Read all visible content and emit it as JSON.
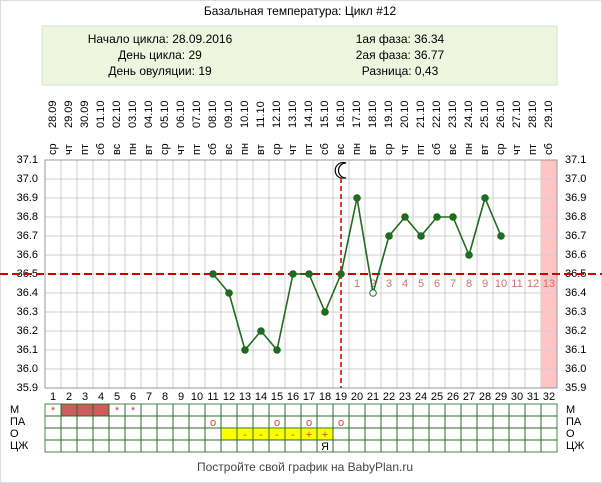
{
  "chart_data": {
    "type": "line",
    "title": "Базальная температура: Цикл #12",
    "info": [
      {
        "label": "Начало цикла:",
        "value": "28.09.2016"
      },
      {
        "label": "День цикла:",
        "value": 29
      },
      {
        "label": "День овуляции:",
        "value": 19
      },
      {
        "label": "1ая фаза:",
        "value": 36.34
      },
      {
        "label": "2ая фаза:",
        "value": 36.77
      },
      {
        "label": "Разница:",
        "value": "0,43"
      }
    ],
    "categories": [
      1,
      2,
      3,
      4,
      5,
      6,
      7,
      8,
      9,
      10,
      11,
      12,
      13,
      14,
      15,
      16,
      17,
      18,
      19,
      20,
      21,
      22,
      23,
      24,
      25,
      26,
      27,
      28,
      29,
      30,
      31,
      32
    ],
    "dates": [
      "28.09",
      "29.09",
      "30.09",
      "01.10",
      "02.10",
      "03.10",
      "04.10",
      "05.10",
      "06.10",
      "07.10",
      "08.10",
      "09.10",
      "10.10",
      "11.10",
      "12.10",
      "13.10",
      "14.10",
      "15.10",
      "16.10",
      "17.10",
      "18.10",
      "19.10",
      "20.10",
      "21.10",
      "22.10",
      "23.10",
      "24.10",
      "25.10",
      "26.10",
      "27.10",
      "28.10",
      "29.10"
    ],
    "weekdays": [
      "ср",
      "чт",
      "пт",
      "сб",
      "вс",
      "пн",
      "вт",
      "ср",
      "чт",
      "пт",
      "сб",
      "вс",
      "пн",
      "вт",
      "ср",
      "чт",
      "пт",
      "сб",
      "вс",
      "пн",
      "вт",
      "ср",
      "чт",
      "пт",
      "сб",
      "вс",
      "пн",
      "вт",
      "ср",
      "чт",
      "пт",
      "сб"
    ],
    "values": [
      null,
      null,
      null,
      null,
      null,
      null,
      null,
      null,
      null,
      null,
      36.5,
      36.4,
      36.1,
      36.2,
      36.1,
      36.5,
      36.5,
      36.3,
      36.5,
      36.9,
      36.4,
      36.7,
      36.8,
      36.7,
      36.8,
      36.8,
      36.6,
      36.9,
      36.7,
      null,
      null,
      null
    ],
    "hollow_points": [
      20
    ],
    "color": "#1f6b1f",
    "ylim": [
      35.9,
      37.1
    ],
    "yticks": [
      35.9,
      {
        "value": 36,
        "label": "36.0"
      },
      36.1,
      36.2,
      36.3,
      36.4,
      36.5,
      36.6,
      36.7,
      36.8,
      36.9,
      {
        "value": 37,
        "label": "37.0"
      },
      37.1
    ],
    "grid": true,
    "coverline": 36.5,
    "ovulation_day": 19,
    "luteal_days": [
      1,
      2,
      3,
      4,
      5,
      6,
      7,
      8,
      9,
      10,
      11,
      12,
      13
    ],
    "highlight_day": 32,
    "rows": [
      {
        "label": "М",
        "cells": [
          "*",
          null,
          null,
          null,
          "*",
          "*",
          null,
          null,
          null,
          null,
          null,
          null,
          null,
          null,
          null,
          null,
          null,
          null,
          null,
          null,
          null,
          null,
          null,
          null,
          null,
          null,
          null,
          null,
          null,
          null,
          null,
          null
        ],
        "filled": [
          1,
          2,
          3
        ],
        "fill_color": "#cd5c5c"
      },
      {
        "label": "ПА",
        "cells": [
          null,
          null,
          null,
          null,
          null,
          null,
          null,
          null,
          null,
          null,
          "o",
          null,
          null,
          null,
          "o",
          null,
          "o",
          null,
          "o",
          null,
          null,
          null,
          null,
          null,
          null,
          null,
          null,
          null,
          null,
          null,
          null,
          null
        ]
      },
      {
        "label": "О",
        "cells": [
          null,
          null,
          null,
          null,
          null,
          null,
          null,
          null,
          null,
          null,
          null,
          null,
          "-",
          "-",
          "-",
          "-",
          "+",
          "+",
          null,
          null,
          null,
          null,
          null,
          null,
          null,
          null,
          null,
          null,
          null,
          null,
          null,
          null
        ],
        "filled": [
          11,
          12,
          13,
          14,
          15,
          16,
          17
        ],
        "fill_color": "#ffff00"
      },
      {
        "label": "ЦЖ",
        "cells": [
          null,
          null,
          null,
          null,
          null,
          null,
          null,
          null,
          null,
          null,
          null,
          null,
          null,
          null,
          null,
          null,
          null,
          "Я",
          null,
          null,
          null,
          null,
          null,
          null,
          null,
          null,
          null,
          null,
          null,
          null,
          null,
          null
        ]
      }
    ],
    "footer": "Постройте свой график на BabyPlan.ru"
  }
}
